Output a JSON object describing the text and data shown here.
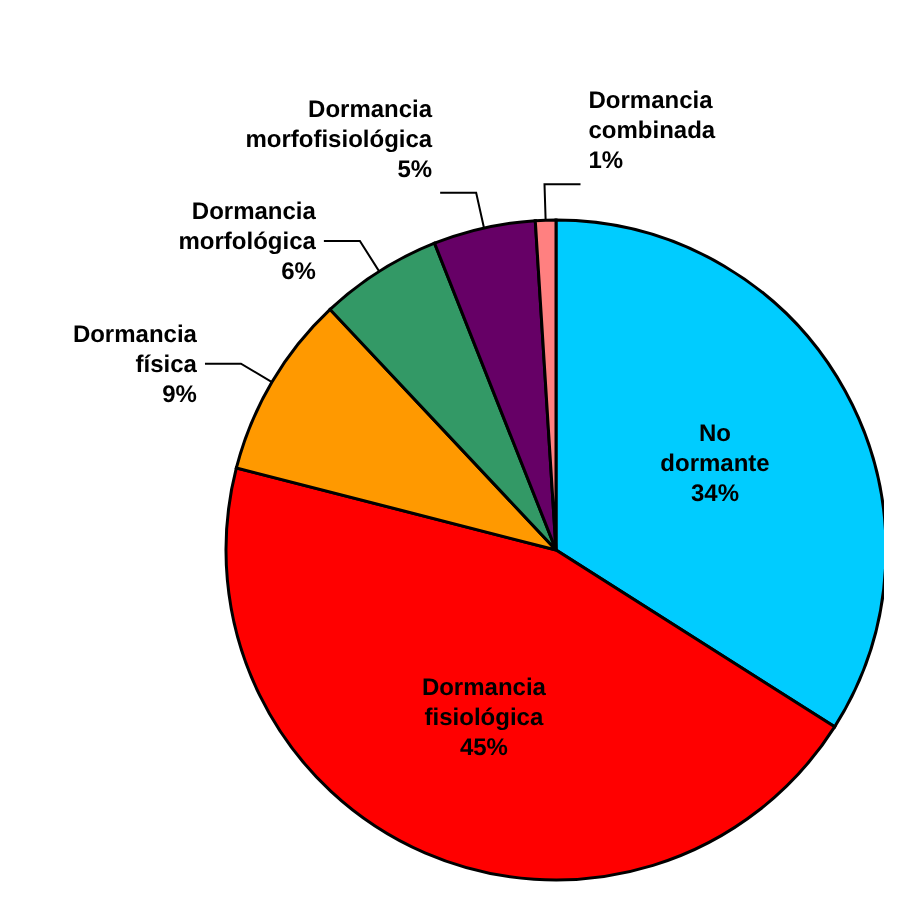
{
  "chart_data": {
    "type": "pie",
    "categories": [
      "No dormante",
      "Dormancia fisiológica",
      "Dormancia física",
      "Dormancia morfológica",
      "Dormancia morfofisiológica",
      "Dormancia combinada"
    ],
    "values": [
      34,
      45,
      9,
      6,
      5,
      1
    ],
    "value_labels": [
      "34%",
      "45%",
      "9%",
      "6%",
      "5%",
      "1%"
    ],
    "colors": [
      "#00ccff",
      "#ff0000",
      "#ff9900",
      "#339966",
      "#660066",
      "#ff8080"
    ]
  }
}
